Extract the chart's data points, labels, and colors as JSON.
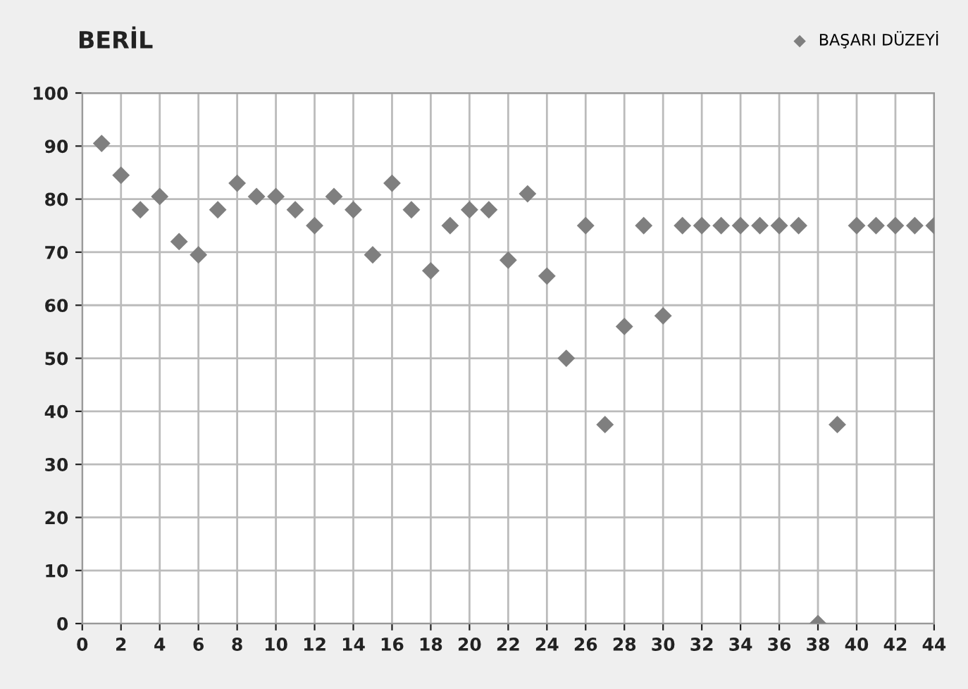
{
  "chart_data": {
    "type": "scatter",
    "title": "BERİL",
    "marker": "diamond",
    "grid": true,
    "legend": "top right",
    "x": [
      1,
      2,
      3,
      4,
      5,
      6,
      7,
      8,
      9,
      10,
      11,
      12,
      13,
      14,
      15,
      16,
      17,
      18,
      19,
      20,
      21,
      22,
      23,
      24,
      25,
      26,
      27,
      28,
      29,
      30,
      31,
      32,
      33,
      34,
      35,
      36,
      37,
      38,
      39,
      40,
      41,
      42,
      43,
      44
    ],
    "series": [
      {
        "name": "BAŞARI DÜZEYİ",
        "color": "#7f7f7f",
        "values": [
          90.5,
          84.5,
          78,
          80.5,
          72,
          69.5,
          78,
          83,
          80.5,
          80.5,
          78,
          75,
          80.5,
          78,
          69.5,
          83,
          78,
          66.5,
          75,
          78,
          78,
          68.5,
          81,
          65.5,
          50,
          75,
          37.5,
          56,
          75,
          58,
          75,
          75,
          75,
          75,
          75,
          75,
          75,
          0,
          37.5,
          75,
          75,
          75,
          75,
          75
        ]
      }
    ],
    "xlim": [
      0,
      44
    ],
    "xticks": [
      0,
      2,
      4,
      6,
      8,
      10,
      12,
      14,
      16,
      18,
      20,
      22,
      24,
      26,
      28,
      30,
      32,
      34,
      36,
      38,
      40,
      42,
      44
    ],
    "ylim": [
      0,
      100
    ],
    "yticks": [
      0,
      10,
      20,
      30,
      40,
      50,
      60,
      70,
      80,
      90,
      100
    ]
  }
}
